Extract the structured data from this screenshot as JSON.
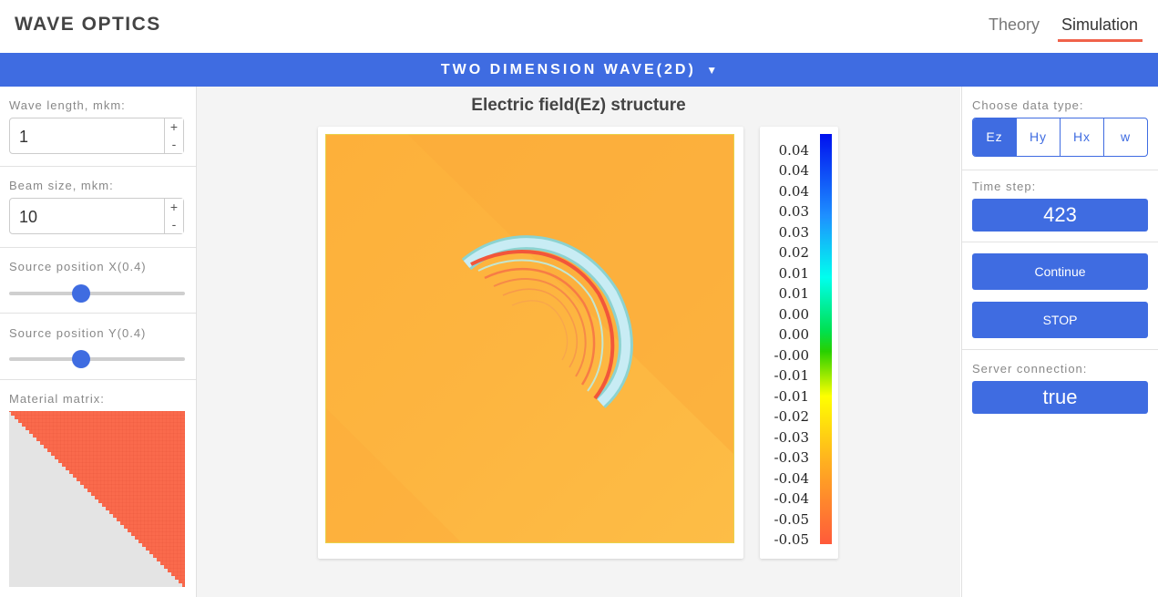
{
  "app": {
    "title": "WAVE OPTICS"
  },
  "nav": {
    "tabs": [
      {
        "label": "Theory"
      },
      {
        "label": "Simulation"
      }
    ],
    "active": "Simulation"
  },
  "mode_selector": {
    "label": "TWO DIMENSION WAVE(2D)",
    "icon": "caret-down-icon"
  },
  "left_panel": {
    "wave_length": {
      "label": "Wave length, mkm:",
      "value": "1",
      "increment": "+",
      "decrement": "-"
    },
    "beam_size": {
      "label": "Beam size, mkm:",
      "value": "10",
      "increment": "+",
      "decrement": "-"
    },
    "source_x": {
      "label": "Source position X(0.4)",
      "value": 0.4
    },
    "source_y": {
      "label": "Source position Y(0.4)",
      "value": 0.4
    },
    "material_matrix": {
      "label": "Material matrix:"
    }
  },
  "main": {
    "title": "Electric field(Ez) structure",
    "colorbar_labels": [
      "0.04",
      "0.04",
      "0.04",
      "0.03",
      "0.03",
      "0.02",
      "0.01",
      "0.01",
      "0.00",
      "0.00",
      "-0.00",
      "-0.01",
      "-0.01",
      "-0.02",
      "-0.03",
      "-0.03",
      "-0.04",
      "-0.04",
      "-0.05",
      "-0.05"
    ]
  },
  "right_panel": {
    "data_type": {
      "label": "Choose data type:",
      "options": [
        "Ez",
        "Hy",
        "Hx",
        "w"
      ],
      "selected": "Ez"
    },
    "time_step": {
      "label": "Time step:",
      "value": "423"
    },
    "continue_label": "Continue",
    "stop_label": "STOP",
    "server": {
      "label": "Server connection:",
      "value": "true"
    }
  },
  "colors": {
    "accent": "#3f6ce1",
    "nav_underline": "#f0624b",
    "material": "#fa6a4c",
    "field_bg": "#fdb03d"
  }
}
